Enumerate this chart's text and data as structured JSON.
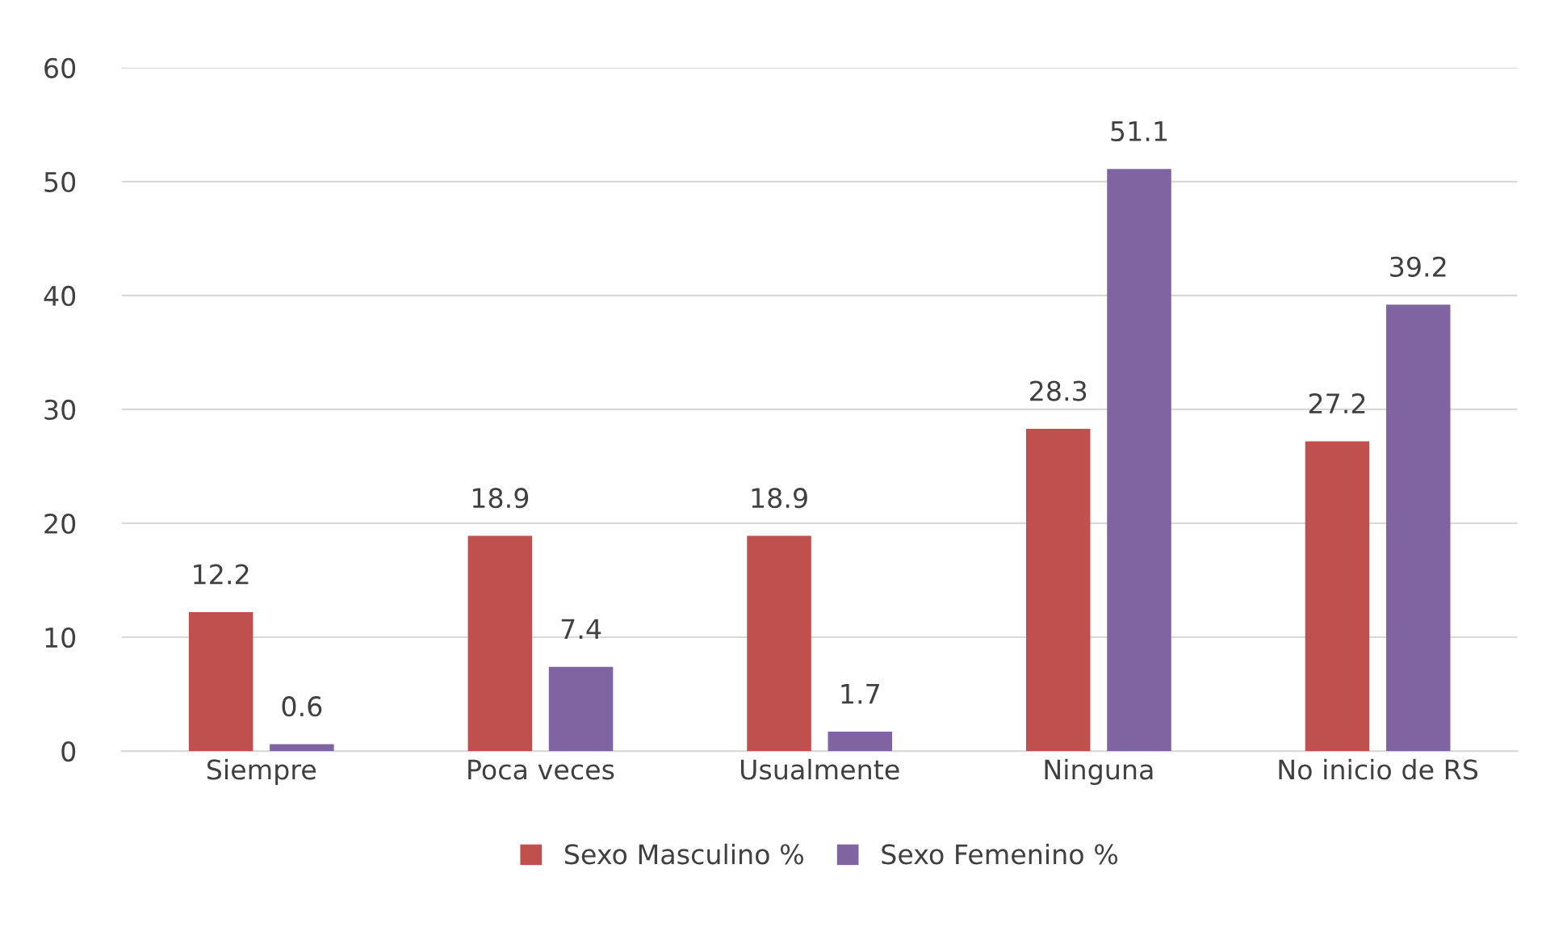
{
  "chart_data": {
    "type": "bar",
    "categories": [
      "Siempre",
      "Poca veces",
      "Usualmente",
      "Ninguna",
      "No inicio de RS"
    ],
    "series": [
      {
        "name": "Sexo Masculino %",
        "color": "#c0504d",
        "values": [
          12.2,
          18.9,
          18.9,
          28.3,
          27.2
        ]
      },
      {
        "name": "Sexo Femenino %",
        "color": "#8064a2",
        "values": [
          0.6,
          7.4,
          1.7,
          51.1,
          39.2
        ]
      }
    ],
    "ylim": [
      0,
      60
    ],
    "yticks": [
      0,
      10,
      20,
      30,
      40,
      50,
      60
    ],
    "grid": "y",
    "legend": "bottom",
    "data_labels": true
  }
}
